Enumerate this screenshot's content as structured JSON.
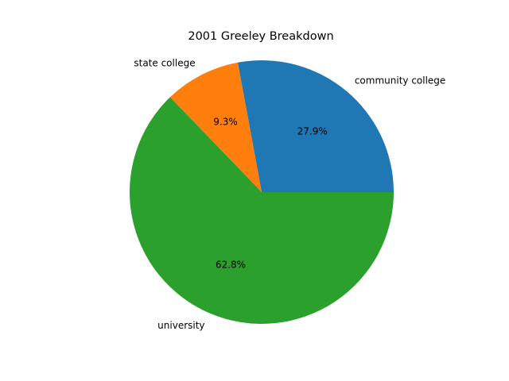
{
  "chart_data": {
    "type": "pie",
    "title": "2001 Greeley Breakdown",
    "slices": [
      {
        "label": "community college",
        "value": 27.9,
        "pct_label": "27.9%",
        "color": "#1f77b4"
      },
      {
        "label": "state college",
        "value": 9.3,
        "pct_label": "9.3%",
        "color": "#ff7f0e"
      },
      {
        "label": "university",
        "value": 62.8,
        "pct_label": "62.8%",
        "color": "#2ca02c"
      }
    ],
    "start_angle_deg": 0,
    "direction": "counterclockwise",
    "legend": "none"
  }
}
